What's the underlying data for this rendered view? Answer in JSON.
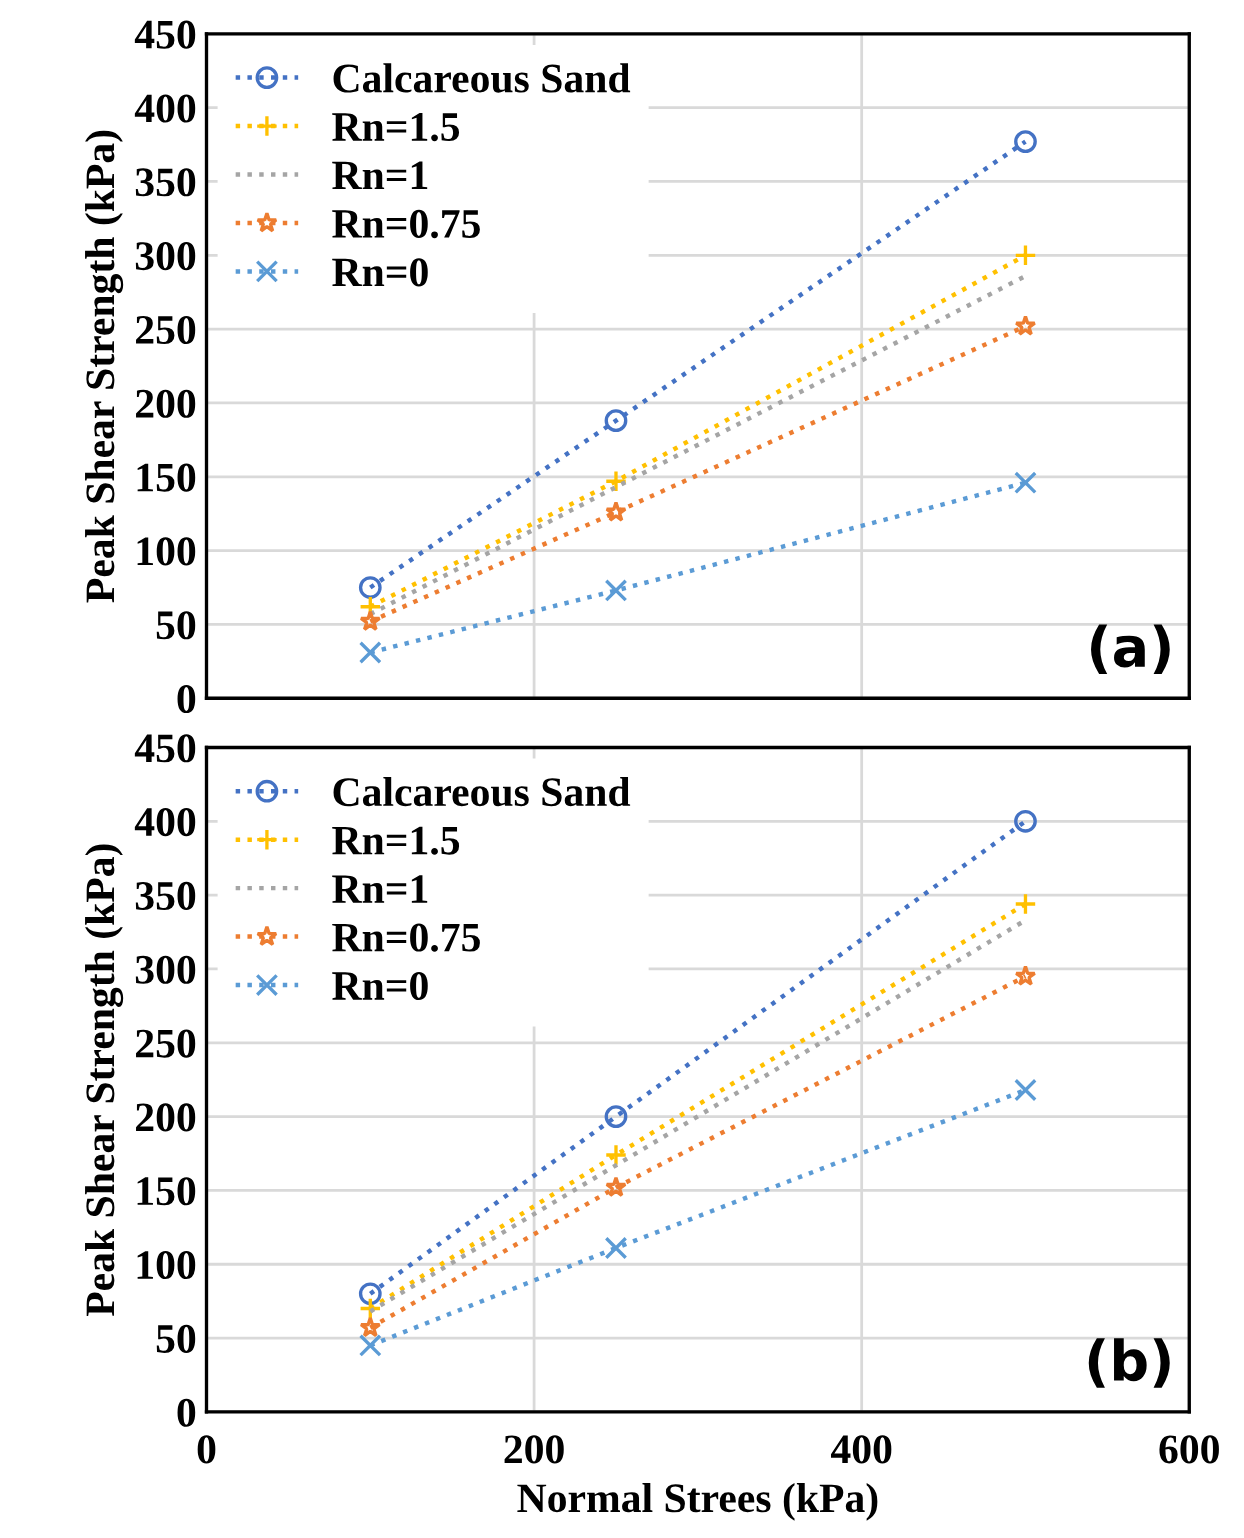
{
  "chart_data": [
    {
      "type": "line",
      "ylabel": "Peak Shear Strength (kPa)",
      "x": [
        100,
        250,
        500
      ],
      "xlim": [
        0,
        600
      ],
      "xticks": [
        0,
        200,
        400,
        600
      ],
      "ylim": [
        0,
        450
      ],
      "yticks": [
        0,
        50,
        100,
        150,
        200,
        250,
        300,
        350,
        400,
        450
      ],
      "grid": true,
      "legend": "top left",
      "tick_labels": "y",
      "line_style": "dotted",
      "annotations": [
        "(a)"
      ],
      "series": [
        {
          "name": "Calcareous Sand",
          "color": "#4472c4",
          "marker": "circle",
          "values": [
            75,
            188,
            377
          ]
        },
        {
          "name": "Rn=1.5",
          "color": "#ffc000",
          "marker": "plus",
          "values": [
            62,
            147,
            300
          ]
        },
        {
          "name": "Rn=1",
          "color": "#a5a5a5",
          "marker": "none",
          "values": [
            57,
            143,
            286
          ]
        },
        {
          "name": "Rn=0.75",
          "color": "#ed7d31",
          "marker": "star",
          "values": [
            52,
            126,
            252
          ]
        },
        {
          "name": "Rn=0",
          "color": "#5b9bd5",
          "marker": "cross",
          "values": [
            31,
            73,
            146
          ]
        }
      ]
    },
    {
      "type": "line",
      "xlabel": "Normal Strees (kPa)",
      "ylabel": "Peak Shear Strength (kPa)",
      "x": [
        100,
        250,
        500
      ],
      "xlim": [
        0,
        600
      ],
      "xticks": [
        0,
        200,
        400,
        600
      ],
      "ylim": [
        0,
        450
      ],
      "yticks": [
        0,
        50,
        100,
        150,
        200,
        250,
        300,
        350,
        400,
        450
      ],
      "grid": true,
      "legend": "top left",
      "line_style": "dotted",
      "annotations": [
        "(b)"
      ],
      "series": [
        {
          "name": "Calcareous Sand",
          "color": "#4472c4",
          "marker": "circle",
          "values": [
            80,
            200,
            400
          ]
        },
        {
          "name": "Rn=1.5",
          "color": "#ffc000",
          "marker": "plus",
          "values": [
            70,
            174,
            344
          ]
        },
        {
          "name": "Rn=1",
          "color": "#a5a5a5",
          "marker": "none",
          "values": [
            68,
            167,
            333
          ]
        },
        {
          "name": "Rn=0.75",
          "color": "#ed7d31",
          "marker": "star",
          "values": [
            57,
            152,
            295
          ]
        },
        {
          "name": "Rn=0",
          "color": "#5b9bd5",
          "marker": "cross",
          "values": [
            45,
            111,
            218
          ]
        }
      ]
    }
  ]
}
